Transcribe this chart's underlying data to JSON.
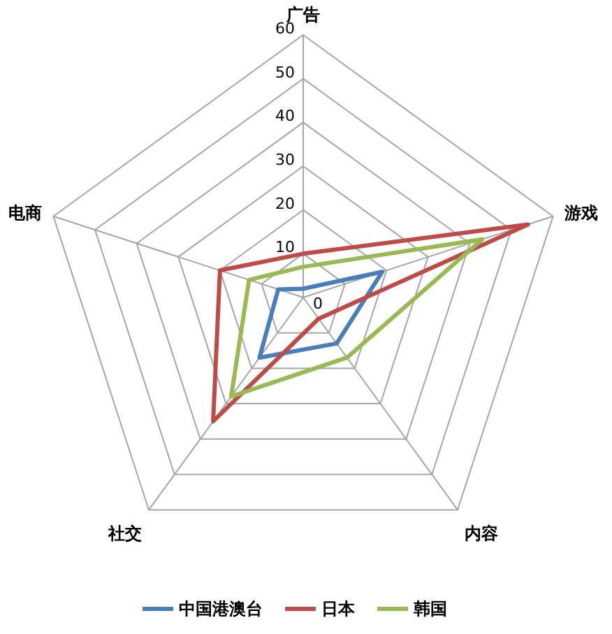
{
  "chart_data": {
    "type": "radar",
    "categories": [
      "广告",
      "游戏",
      "内容",
      "社交",
      "电商"
    ],
    "series": [
      {
        "name": "中国港澳台",
        "color": "#4a7ebb",
        "values": [
          2,
          19,
          13,
          17,
          6
        ]
      },
      {
        "name": "日本",
        "color": "#be4b48",
        "values": [
          10,
          54,
          6,
          35,
          20
        ]
      },
      {
        "name": "韩国",
        "color": "#98b954",
        "values": [
          7,
          43,
          17,
          28,
          13
        ]
      }
    ],
    "ylim": [
      0,
      60
    ],
    "yticks": [
      0,
      10,
      20,
      30,
      40,
      50,
      60
    ],
    "grid": true,
    "legend": "bottom"
  }
}
